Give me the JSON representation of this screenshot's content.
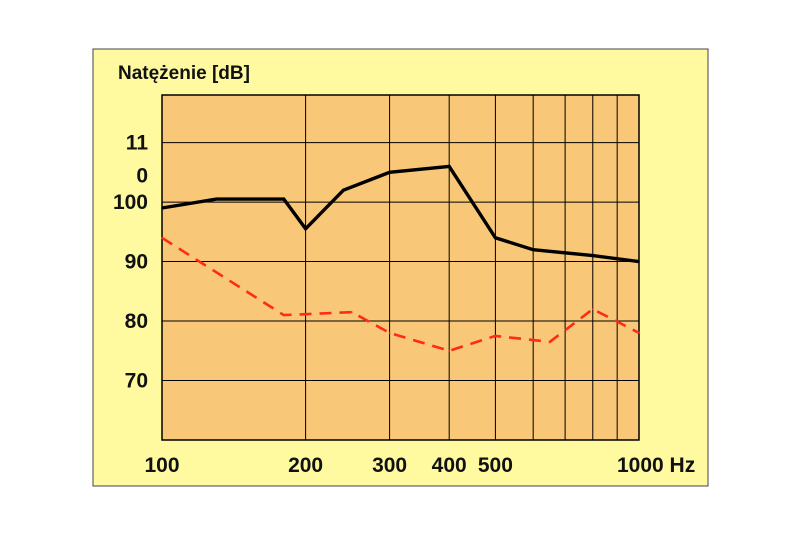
{
  "chart_data": {
    "type": "line",
    "ylabel": "Natężenie [dB]",
    "x_scale": "log",
    "xlim": [
      100,
      1000
    ],
    "ylim": [
      60,
      118
    ],
    "grid": true,
    "x_gridlines": [
      100,
      200,
      300,
      400,
      500,
      600,
      700,
      800,
      900,
      1000
    ],
    "y_gridlines": [
      70,
      80,
      90,
      100,
      110
    ],
    "x_ticks": [
      {
        "value": 100,
        "label": "100"
      },
      {
        "value": 200,
        "label": "200"
      },
      {
        "value": 300,
        "label": "300"
      },
      {
        "value": 400,
        "label": "400"
      },
      {
        "value": 500,
        "label": "500"
      },
      {
        "value": 1000,
        "label": "1000 Hz"
      }
    ],
    "y_ticks": [
      {
        "value": 70,
        "label": "70"
      },
      {
        "value": 80,
        "label": "80"
      },
      {
        "value": 90,
        "label": "90"
      },
      {
        "value": 100,
        "label": "100"
      },
      {
        "value": 104.5,
        "label": "0"
      },
      {
        "value": 110,
        "label": "11"
      }
    ],
    "series": [
      {
        "style": "solid",
        "color": "#000000",
        "x": [
          100,
          130,
          180,
          200,
          240,
          300,
          400,
          500,
          600,
          800,
          1000
        ],
        "y": [
          99,
          100.5,
          100.5,
          95.5,
          102,
          105,
          106,
          94,
          92,
          91,
          90
        ]
      },
      {
        "style": "dashed",
        "color": "#ff2a1a",
        "x": [
          100,
          180,
          250,
          300,
          400,
          500,
          650,
          800,
          1000
        ],
        "y": [
          94,
          81,
          81.5,
          78,
          75,
          77.5,
          76.5,
          82,
          78
        ]
      }
    ]
  },
  "colors": {
    "page_background": "#ffffff",
    "frame_background": "#fffaa0",
    "plot_background": "#f9c778",
    "grid": "#000000"
  }
}
